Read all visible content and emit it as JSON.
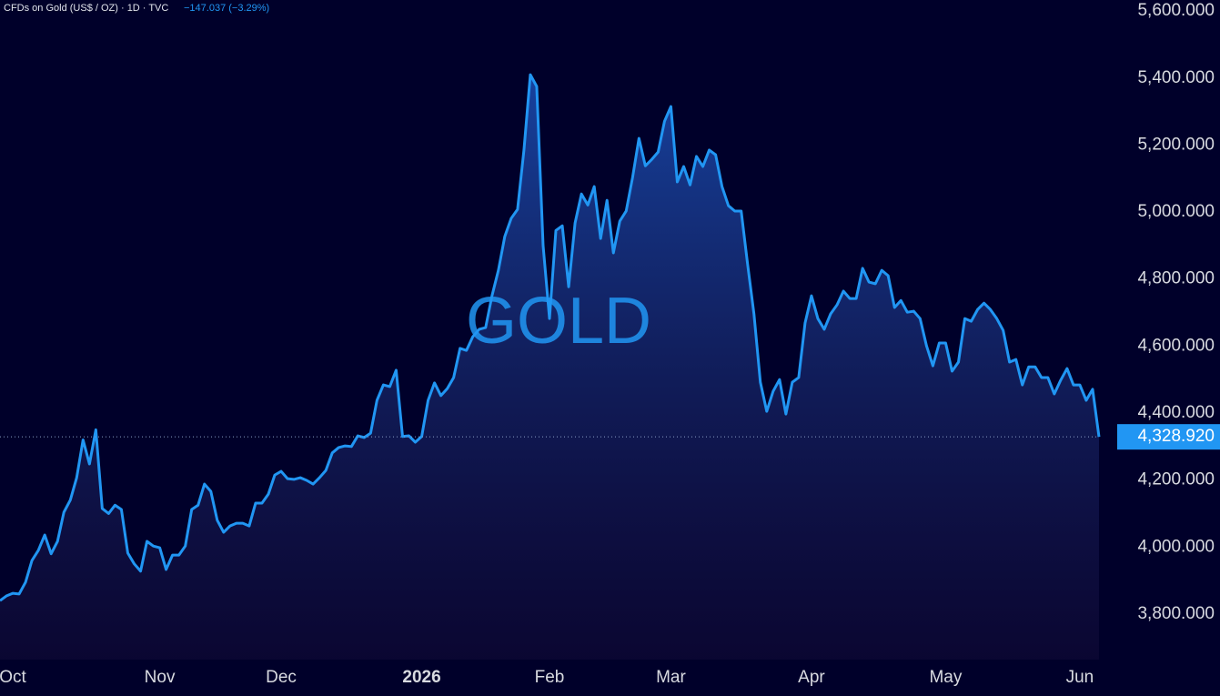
{
  "chart_data": {
    "type": "area",
    "title": "CFDs on Gold (US$ / OZ) · 1D · TVC",
    "subtitle": "−147.037 (−3.29%)",
    "watermark": "GOLD",
    "color": "#2196f3",
    "categories": [
      null,
      null,
      "Oct",
      null,
      null,
      null,
      null,
      null,
      null,
      null,
      null,
      null,
      null,
      null,
      null,
      null,
      null,
      null,
      null,
      null,
      null,
      null,
      null,
      null,
      null,
      "Nov",
      null,
      null,
      null,
      null,
      null,
      null,
      null,
      null,
      null,
      null,
      null,
      null,
      null,
      null,
      null,
      null,
      null,
      null,
      "Dec",
      null,
      null,
      null,
      null,
      null,
      null,
      null,
      null,
      null,
      null,
      null,
      null,
      null,
      null,
      null,
      null,
      null,
      null,
      null,
      null,
      null,
      "2026",
      null,
      null,
      null,
      null,
      null,
      null,
      null,
      null,
      null,
      null,
      null,
      null,
      null,
      null,
      null,
      null,
      null,
      null,
      null,
      "Feb",
      null,
      null,
      null,
      null,
      null,
      null,
      null,
      null,
      null,
      null,
      null,
      null,
      null,
      null,
      null,
      null,
      null,
      null,
      "Mar",
      null,
      null,
      null,
      null,
      null,
      null,
      null,
      null,
      null,
      null,
      null,
      null,
      null,
      null,
      null,
      null,
      null,
      null,
      null,
      null,
      null,
      "Apr",
      null,
      null,
      null,
      null,
      null,
      null,
      null,
      null,
      null,
      null,
      null,
      null,
      null,
      null,
      null,
      null,
      null,
      null,
      null,
      null,
      "May",
      null,
      null,
      null,
      null,
      null,
      null,
      null,
      null,
      null,
      null,
      null,
      null,
      null,
      null,
      null,
      null,
      null,
      null,
      null,
      null,
      "Jun",
      null,
      null,
      null
    ],
    "values": [
      3840,
      3854,
      3862,
      3860,
      3895,
      3960,
      3990,
      4036,
      3980,
      4017,
      4104,
      4140,
      4207,
      4320,
      4248,
      4350,
      4115,
      4100,
      4125,
      4112,
      3982,
      3950,
      3928,
      4017,
      4003,
      3998,
      3933,
      3976,
      3976,
      4003,
      4112,
      4125,
      4188,
      4166,
      4080,
      4044,
      4063,
      4071,
      4071,
      4063,
      4131,
      4131,
      4158,
      4215,
      4226,
      4204,
      4202,
      4207,
      4199,
      4188,
      4207,
      4229,
      4281,
      4297,
      4302,
      4300,
      4332,
      4327,
      4340,
      4438,
      4484,
      4479,
      4528,
      4330,
      4332,
      4313,
      4330,
      4438,
      4490,
      4452,
      4473,
      4506,
      4593,
      4587,
      4628,
      4650,
      4655,
      4750,
      4826,
      4927,
      4981,
      5008,
      5185,
      5410,
      5375,
      4900,
      4682,
      4945,
      4959,
      4777,
      4967,
      5054,
      5021,
      5076,
      4921,
      5035,
      4878,
      4973,
      5003,
      5103,
      5220,
      5138,
      5157,
      5179,
      5271,
      5315,
      5090,
      5136,
      5081,
      5166,
      5136,
      5185,
      5171,
      5076,
      5019,
      5003,
      5003,
      4845,
      4696,
      4492,
      4405,
      4465,
      4500,
      4397,
      4492,
      4506,
      4669,
      4750,
      4682,
      4650,
      4696,
      4723,
      4764,
      4742,
      4742,
      4832,
      4791,
      4786,
      4826,
      4810,
      4715,
      4736,
      4701,
      4704,
      4682,
      4601,
      4541,
      4609,
      4609,
      4525,
      4552,
      4682,
      4674,
      4709,
      4728,
      4709,
      4682,
      4647,
      4552,
      4560,
      4484,
      4538,
      4538,
      4506,
      4506,
      4457,
      4498,
      4533,
      4484,
      4484,
      4438,
      4471,
      4328.92
    ],
    "price_tag": {
      "value": 4328.92,
      "label": "4,328.920"
    },
    "ylim": [
      3664,
      5633
    ],
    "yticks": [
      {
        "value": 3800,
        "label": "3,800.000"
      },
      {
        "value": 4000,
        "label": "4,000.000"
      },
      {
        "value": 4200,
        "label": "4,200.000"
      },
      {
        "value": 4400,
        "label": "4,400.000"
      },
      {
        "value": 4600,
        "label": "4,600.000"
      },
      {
        "value": 4800,
        "label": "4,800.000"
      },
      {
        "value": 5000,
        "label": "5,000.000"
      },
      {
        "value": 5200,
        "label": "5,200.000"
      },
      {
        "value": 5400,
        "label": "5,400.000"
      },
      {
        "value": 5600,
        "label": "5,600.000"
      }
    ],
    "grid": false
  }
}
